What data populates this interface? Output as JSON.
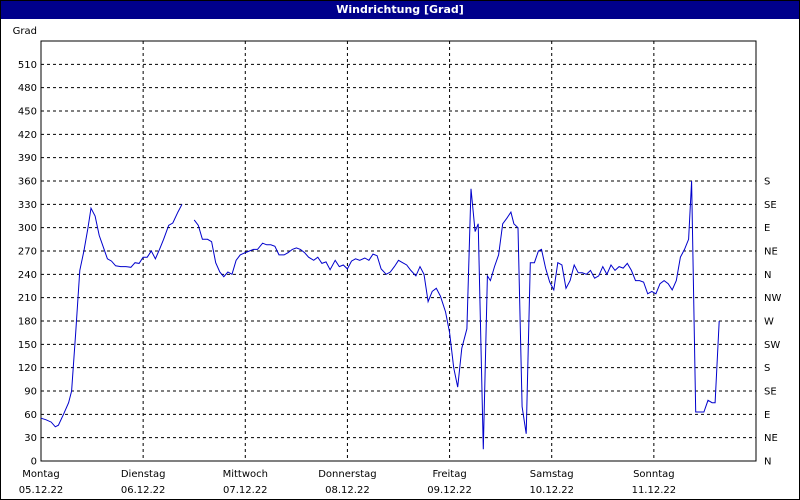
{
  "chart_data": {
    "type": "line",
    "title": "Windrichtung [Grad]",
    "ylabel": "Grad",
    "ylim": [
      0,
      540
    ],
    "yticks": [
      0,
      30,
      60,
      90,
      120,
      150,
      180,
      210,
      240,
      270,
      300,
      330,
      360,
      390,
      420,
      450,
      480,
      510
    ],
    "right_axis_labels": [
      "N",
      "NE",
      "E",
      "SE",
      "S",
      "SW",
      "W",
      "NW",
      "N",
      "NE",
      "E",
      "SE",
      "S"
    ],
    "right_axis_values": [
      0,
      30,
      60,
      90,
      120,
      150,
      180,
      210,
      240,
      270,
      300,
      330,
      360
    ],
    "x_unit": "day",
    "xlim": [
      0,
      7
    ],
    "day_labels": [
      {
        "day": "Montag",
        "date": "05.12.22"
      },
      {
        "day": "Dienstag",
        "date": "06.12.22"
      },
      {
        "day": "Mittwoch",
        "date": "07.12.22"
      },
      {
        "day": "Donnerstag",
        "date": "08.12.22"
      },
      {
        "day": "Freitag",
        "date": "09.12.22"
      },
      {
        "day": "Samstag",
        "date": "10.12.22"
      },
      {
        "day": "Sonntag",
        "date": "11.12.22"
      }
    ],
    "grid": true,
    "series": [
      {
        "color": "#0000cc",
        "segments": [
          [
            [
              0.0,
              55
            ],
            [
              0.05,
              53
            ],
            [
              0.1,
              50
            ],
            [
              0.14,
              44
            ],
            [
              0.17,
              46
            ],
            [
              0.22,
              60
            ],
            [
              0.27,
              75
            ],
            [
              0.3,
              90
            ],
            [
              0.34,
              165
            ],
            [
              0.38,
              245
            ],
            [
              0.42,
              270
            ],
            [
              0.46,
              300
            ],
            [
              0.49,
              325
            ],
            [
              0.53,
              315
            ],
            [
              0.57,
              290
            ],
            [
              0.61,
              275
            ],
            [
              0.65,
              260
            ],
            [
              0.69,
              257
            ],
            [
              0.73,
              251
            ],
            [
              0.78,
              250
            ],
            [
              0.83,
              250
            ],
            [
              0.88,
              249
            ],
            [
              0.92,
              255
            ],
            [
              0.96,
              254
            ],
            [
              1.0,
              262
            ],
            [
              1.04,
              262
            ],
            [
              1.08,
              270
            ],
            [
              1.12,
              260
            ],
            [
              1.16,
              272
            ],
            [
              1.2,
              285
            ],
            [
              1.25,
              303
            ],
            [
              1.29,
              306
            ],
            [
              1.34,
              320
            ],
            [
              1.38,
              330
            ]
          ],
          [
            [
              1.5,
              310
            ],
            [
              1.54,
              303
            ],
            [
              1.58,
              285
            ],
            [
              1.63,
              285
            ],
            [
              1.67,
              282
            ],
            [
              1.71,
              255
            ],
            [
              1.75,
              243
            ],
            [
              1.79,
              237
            ],
            [
              1.83,
              243
            ],
            [
              1.87,
              240
            ],
            [
              1.91,
              258
            ],
            [
              1.95,
              265
            ],
            [
              2.0,
              268
            ],
            [
              2.04,
              270
            ],
            [
              2.08,
              272
            ],
            [
              2.12,
              272
            ],
            [
              2.17,
              280
            ],
            [
              2.21,
              278
            ],
            [
              2.25,
              278
            ],
            [
              2.29,
              276
            ],
            [
              2.33,
              265
            ],
            [
              2.38,
              265
            ],
            [
              2.42,
              268
            ],
            [
              2.46,
              272
            ],
            [
              2.5,
              274
            ],
            [
              2.54,
              272
            ],
            [
              2.58,
              268
            ],
            [
              2.62,
              262
            ],
            [
              2.67,
              258
            ],
            [
              2.71,
              262
            ],
            [
              2.75,
              254
            ],
            [
              2.79,
              256
            ],
            [
              2.83,
              246
            ],
            [
              2.88,
              258
            ],
            [
              2.92,
              250
            ],
            [
              2.96,
              252
            ],
            [
              3.0,
              247
            ],
            [
              3.04,
              257
            ],
            [
              3.08,
              260
            ],
            [
              3.12,
              258
            ],
            [
              3.17,
              261
            ],
            [
              3.21,
              258
            ],
            [
              3.25,
              266
            ],
            [
              3.29,
              264
            ],
            [
              3.33,
              247
            ],
            [
              3.38,
              240
            ],
            [
              3.42,
              243
            ],
            [
              3.46,
              250
            ],
            [
              3.5,
              258
            ],
            [
              3.54,
              255
            ],
            [
              3.58,
              252
            ],
            [
              3.62,
              245
            ],
            [
              3.67,
              238
            ],
            [
              3.71,
              250
            ],
            [
              3.75,
              240
            ],
            [
              3.79,
              205
            ],
            [
              3.83,
              218
            ],
            [
              3.87,
              222
            ],
            [
              3.91,
              212
            ],
            [
              3.96,
              192
            ],
            [
              4.0,
              165
            ],
            [
              4.04,
              120
            ],
            [
              4.08,
              95
            ],
            [
              4.12,
              145
            ],
            [
              4.17,
              170
            ],
            [
              4.21,
              350
            ],
            [
              4.25,
              295
            ],
            [
              4.28,
              305
            ],
            [
              4.33,
              15
            ],
            [
              4.37,
              238
            ],
            [
              4.4,
              232
            ],
            [
              4.44,
              250
            ],
            [
              4.48,
              265
            ],
            [
              4.52,
              305
            ],
            [
              4.56,
              312
            ],
            [
              4.6,
              320
            ],
            [
              4.63,
              305
            ],
            [
              4.67,
              300
            ],
            [
              4.71,
              70
            ],
            [
              4.75,
              35
            ],
            [
              4.79,
              255
            ],
            [
              4.83,
              255
            ],
            [
              4.87,
              270
            ],
            [
              4.9,
              272
            ],
            [
              4.94,
              248
            ],
            [
              4.98,
              230
            ],
            [
              5.02,
              220
            ],
            [
              5.06,
              255
            ],
            [
              5.1,
              252
            ],
            [
              5.14,
              222
            ],
            [
              5.18,
              232
            ],
            [
              5.22,
              252
            ],
            [
              5.26,
              242
            ],
            [
              5.3,
              242
            ],
            [
              5.34,
              240
            ],
            [
              5.38,
              245
            ],
            [
              5.42,
              235
            ],
            [
              5.46,
              238
            ],
            [
              5.5,
              250
            ],
            [
              5.54,
              240
            ],
            [
              5.58,
              252
            ],
            [
              5.62,
              245
            ],
            [
              5.66,
              250
            ],
            [
              5.7,
              248
            ],
            [
              5.74,
              254
            ],
            [
              5.78,
              245
            ],
            [
              5.82,
              232
            ],
            [
              5.86,
              232
            ],
            [
              5.9,
              230
            ],
            [
              5.94,
              215
            ],
            [
              5.98,
              218
            ],
            [
              6.02,
              215
            ],
            [
              6.06,
              228
            ],
            [
              6.1,
              232
            ],
            [
              6.14,
              228
            ],
            [
              6.18,
              220
            ],
            [
              6.22,
              232
            ],
            [
              6.26,
              262
            ],
            [
              6.3,
              272
            ],
            [
              6.34,
              285
            ],
            [
              6.37,
              360
            ],
            [
              6.41,
              63
            ],
            [
              6.45,
              63
            ],
            [
              6.49,
              63
            ],
            [
              6.53,
              78
            ],
            [
              6.57,
              75
            ],
            [
              6.6,
              75
            ],
            [
              6.64,
              180
            ]
          ]
        ]
      }
    ]
  }
}
